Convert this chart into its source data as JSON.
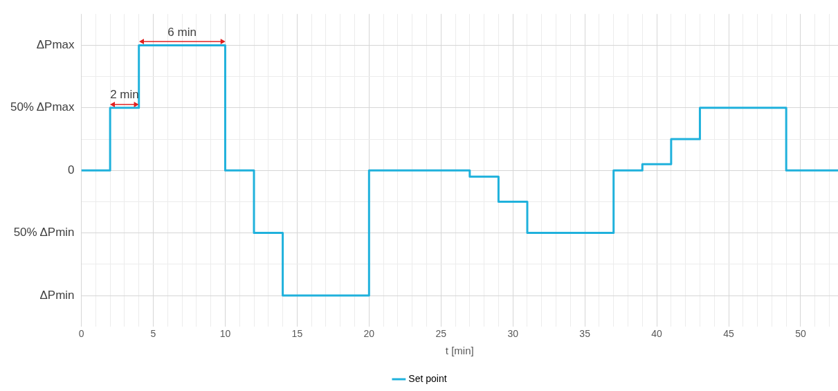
{
  "chart_data": {
    "type": "step",
    "xlabel": "t [min]",
    "xlim": [
      0,
      52.6
    ],
    "xticks": [
      0,
      {
        "value": 1,
        "label": null
      },
      {
        "value": 2,
        "label": null
      },
      {
        "value": 3,
        "label": null
      },
      {
        "value": 4,
        "label": null
      },
      5,
      {
        "value": 6,
        "label": null
      },
      {
        "value": 7,
        "label": null
      },
      {
        "value": 8,
        "label": null
      },
      {
        "value": 9,
        "label": null
      },
      10,
      {
        "value": 11,
        "label": null
      },
      {
        "value": 12,
        "label": null
      },
      {
        "value": 13,
        "label": null
      },
      {
        "value": 14,
        "label": null
      },
      15,
      {
        "value": 16,
        "label": null
      },
      {
        "value": 17,
        "label": null
      },
      {
        "value": 18,
        "label": null
      },
      {
        "value": 19,
        "label": null
      },
      20,
      {
        "value": 21,
        "label": null
      },
      {
        "value": 22,
        "label": null
      },
      {
        "value": 23,
        "label": null
      },
      {
        "value": 24,
        "label": null
      },
      25,
      {
        "value": 26,
        "label": null
      },
      {
        "value": 27,
        "label": null
      },
      {
        "value": 28,
        "label": null
      },
      {
        "value": 29,
        "label": null
      },
      30,
      {
        "value": 31,
        "label": null
      },
      {
        "value": 32,
        "label": null
      },
      {
        "value": 33,
        "label": null
      },
      {
        "value": 34,
        "label": null
      },
      35,
      {
        "value": 36,
        "label": null
      },
      {
        "value": 37,
        "label": null
      },
      {
        "value": 38,
        "label": null
      },
      {
        "value": 39,
        "label": null
      },
      40,
      {
        "value": 41,
        "label": null
      },
      {
        "value": 42,
        "label": null
      },
      {
        "value": 43,
        "label": null
      },
      {
        "value": 44,
        "label": null
      },
      45,
      {
        "value": 46,
        "label": null
      },
      {
        "value": 47,
        "label": null
      },
      {
        "value": 48,
        "label": null
      },
      {
        "value": 49,
        "label": null
      },
      50,
      {
        "value": 51,
        "label": null
      },
      {
        "value": 52,
        "label": null
      }
    ],
    "ylim": [
      -125,
      125
    ],
    "yticks": [
      {
        "value": -100,
        "label": "ΔPmin"
      },
      {
        "value": -75,
        "label": null
      },
      {
        "value": -50,
        "label": "50% ΔPmin"
      },
      {
        "value": -25,
        "label": null
      },
      0,
      {
        "value": 25,
        "label": null
      },
      {
        "value": 50,
        "label": "50% ΔPmax"
      },
      {
        "value": 75,
        "label": null
      },
      {
        "value": 100,
        "label": "ΔPmax"
      }
    ],
    "grid": true,
    "legend": "bottom",
    "series": [
      {
        "name": "Set point",
        "color": "#1fb1dc",
        "x": [
          0,
          2,
          4,
          10,
          12,
          14,
          20,
          27,
          29,
          31,
          37,
          39,
          41,
          43,
          49,
          52.6
        ],
        "values": [
          0,
          50,
          100,
          0,
          -50,
          -100,
          0,
          -5,
          -25,
          -50,
          0,
          5,
          25,
          50,
          0,
          0
        ]
      }
    ],
    "annotations": [
      {
        "text": "2 min",
        "x": 3,
        "y": 50
      },
      {
        "text": "6 min",
        "x": 7,
        "y": 100
      }
    ]
  }
}
